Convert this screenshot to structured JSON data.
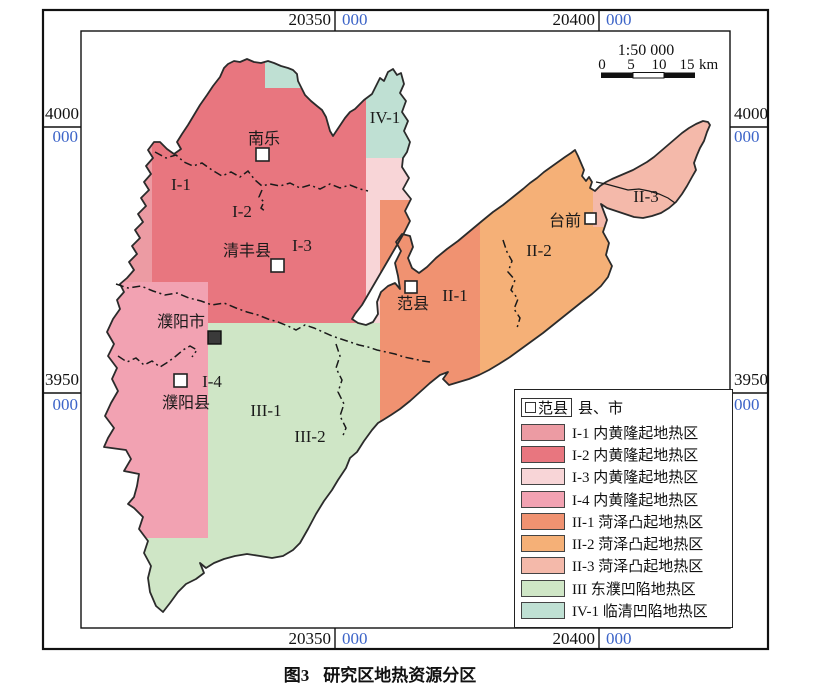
{
  "frame": {
    "top": [
      {
        "k": "20350",
        "b": "000"
      },
      {
        "k": "20400",
        "b": "000"
      }
    ],
    "bottom": [
      {
        "k": "20350",
        "b": "000"
      },
      {
        "k": "20400",
        "b": "000"
      }
    ],
    "left": [
      {
        "k": "4000",
        "b": "000"
      },
      {
        "k": "3950",
        "b": "000"
      }
    ],
    "right": [
      {
        "k": "4000",
        "b": "000"
      },
      {
        "k": "3950",
        "b": "000"
      }
    ]
  },
  "scalebar": {
    "ratio": "1:50 000",
    "ticks": [
      "0",
      "5",
      "10",
      "15"
    ],
    "unit": "km"
  },
  "map_labels": {
    "i1": "I-1",
    "i2": "I-2",
    "i3": "I-3",
    "i4": "I-4",
    "ii1": "II-1",
    "ii2": "II-2",
    "ii3": "II-3",
    "iii1": "III-1",
    "iii2": "III-2",
    "iv1": "IV-1"
  },
  "cities": {
    "nanle": "南乐",
    "qingfeng": "清丰县",
    "puyang_shi": "濮阳市",
    "puyang_xian": "濮阳县",
    "fanxian": "范县",
    "taiqian": "台前"
  },
  "legend": {
    "county_name": "范县",
    "county_type": "县、市",
    "items": [
      {
        "code": "I-1",
        "name": "内黄隆起地热区",
        "color": "#EC9BA3"
      },
      {
        "code": "I-2",
        "name": "内黄隆起地热区",
        "color": "#E8767F"
      },
      {
        "code": "I-3",
        "name": "内黄隆起地热区",
        "color": "#F8D5D7"
      },
      {
        "code": "I-4",
        "name": "内黄隆起地热区",
        "color": "#F2A2B2"
      },
      {
        "code": "II-1",
        "name": "菏泽凸起地热区",
        "color": "#F09271"
      },
      {
        "code": "II-2",
        "name": "菏泽凸起地热区",
        "color": "#F5B077"
      },
      {
        "code": "II-3",
        "name": "菏泽凸起地热区",
        "color": "#F4B9AA"
      },
      {
        "code": "III",
        "name": "东濮凹陷地热区",
        "color": "#CFE6C6"
      },
      {
        "code": "IV-1",
        "name": "临清凹陷地热区",
        "color": "#BFE0D3"
      }
    ]
  },
  "caption": {
    "fig": "图3",
    "title": "研究区地热资源分区"
  }
}
